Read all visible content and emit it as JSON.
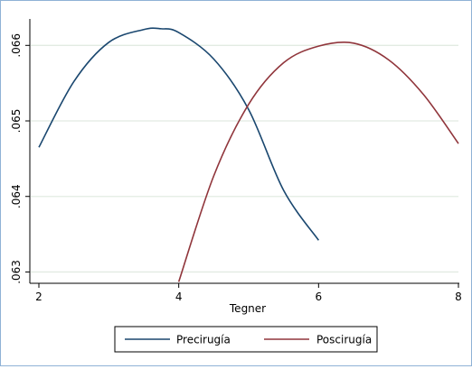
{
  "chart_data": {
    "type": "line",
    "title": "",
    "xlabel": "Tegner",
    "ylabel": "",
    "xlim": [
      2,
      8
    ],
    "ylim": [
      0.06285,
      0.06635
    ],
    "x_ticks": [
      2,
      4,
      6,
      8
    ],
    "x_tick_labels": [
      "2",
      "4",
      "6",
      "8"
    ],
    "y_ticks": [
      0.063,
      0.064,
      0.065,
      0.066
    ],
    "y_tick_labels": [
      ".063",
      ".064",
      ".065",
      ".066"
    ],
    "grid": "horizontal",
    "legend_position": "bottom",
    "colors": {
      "precirugia": "#1a476f",
      "poscirugia": "#90353b",
      "grid": "#e2ebe2",
      "frame": "#8fb2d6"
    },
    "series": [
      {
        "name": "Precirugía",
        "color": "#1a476f",
        "x": [
          2.0,
          2.5,
          3.0,
          3.5,
          3.75,
          4.0,
          4.5,
          5.0,
          5.5,
          6.0
        ],
        "y": [
          0.06465,
          0.06552,
          0.06604,
          0.06621,
          0.06622,
          0.06617,
          0.06582,
          0.06515,
          0.06408,
          0.06342
        ]
      },
      {
        "name": "Poscirugía",
        "color": "#90353b",
        "x": [
          4.0,
          4.5,
          5.0,
          5.5,
          6.0,
          6.5,
          7.0,
          7.5,
          8.0
        ],
        "y": [
          0.06287,
          0.06427,
          0.06522,
          0.06577,
          0.06599,
          0.06603,
          0.06581,
          0.06535,
          0.0647
        ]
      }
    ]
  }
}
